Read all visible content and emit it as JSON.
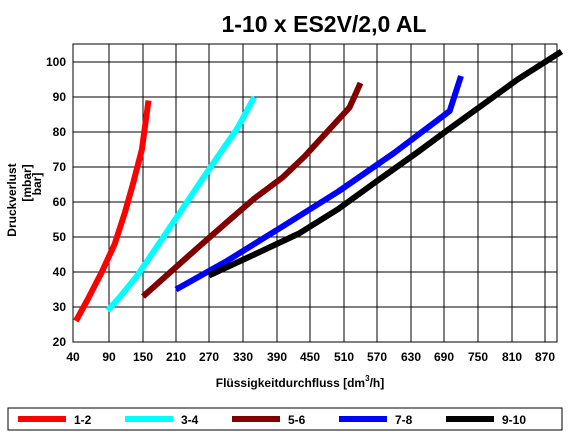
{
  "chart_data": {
    "type": "line",
    "title": "1-10 x ES2V/2,0 AL",
    "xlabel": "Flüssigkeitdurchfluss [dm³/h]",
    "xlabel_main": "Flüssigkeitdurchfluss [dm",
    "xlabel_sup": "3",
    "xlabel_tail": "/h]",
    "ylabel": "Druckverlust",
    "ylabel_unit_1": "[mbar]",
    "ylabel_unit_2": "bar]",
    "xlim": [
      40,
      900
    ],
    "ylim": [
      20,
      105
    ],
    "xticks": [
      40,
      90,
      150,
      210,
      270,
      330,
      390,
      450,
      510,
      570,
      630,
      690,
      750,
      810,
      870
    ],
    "yticks": [
      20,
      30,
      40,
      50,
      60,
      70,
      80,
      90,
      100
    ],
    "xtick_labels": [
      "40",
      "90",
      "150",
      "210",
      "270",
      "330",
      "390",
      "450",
      "510",
      "570",
      "630",
      "690",
      "750",
      "810",
      "870"
    ],
    "ytick_labels": [
      "20",
      "30",
      "40",
      "50",
      "60",
      "70",
      "80",
      "90",
      "100"
    ],
    "grid": true,
    "legend_position": "bottom",
    "series": [
      {
        "name": "1-2",
        "color": "#ff0000",
        "x": [
          44,
          60,
          80,
          100,
          118,
          132,
          148,
          160
        ],
        "y": [
          26,
          32,
          40,
          48,
          57,
          65,
          75,
          89
        ]
      },
      {
        "name": "3-4",
        "color": "#00ffff",
        "x": [
          88,
          110,
          140,
          170,
          200,
          230,
          260,
          290,
          320,
          350
        ],
        "y": [
          29,
          33,
          39,
          46,
          53,
          60,
          67,
          74,
          81,
          90
        ]
      },
      {
        "name": "5-6",
        "color": "#800000",
        "x": [
          150,
          200,
          250,
          300,
          350,
          400,
          440,
          480,
          520,
          540
        ],
        "y": [
          33,
          40,
          47,
          54,
          61,
          67,
          73,
          80,
          87,
          94
        ]
      },
      {
        "name": "7-8",
        "color": "#0000ff",
        "x": [
          210,
          300,
          400,
          500,
          600,
          700,
          720
        ],
        "y": [
          35,
          43,
          53,
          63,
          74,
          86,
          96
        ]
      },
      {
        "name": "9-10",
        "color": "#000000",
        "x": [
          270,
          350,
          430,
          500,
          570,
          640,
          700,
          760,
          820,
          880,
          900
        ],
        "y": [
          39,
          45,
          51,
          58,
          66,
          74,
          81,
          88,
          95,
          101,
          103
        ]
      }
    ]
  }
}
